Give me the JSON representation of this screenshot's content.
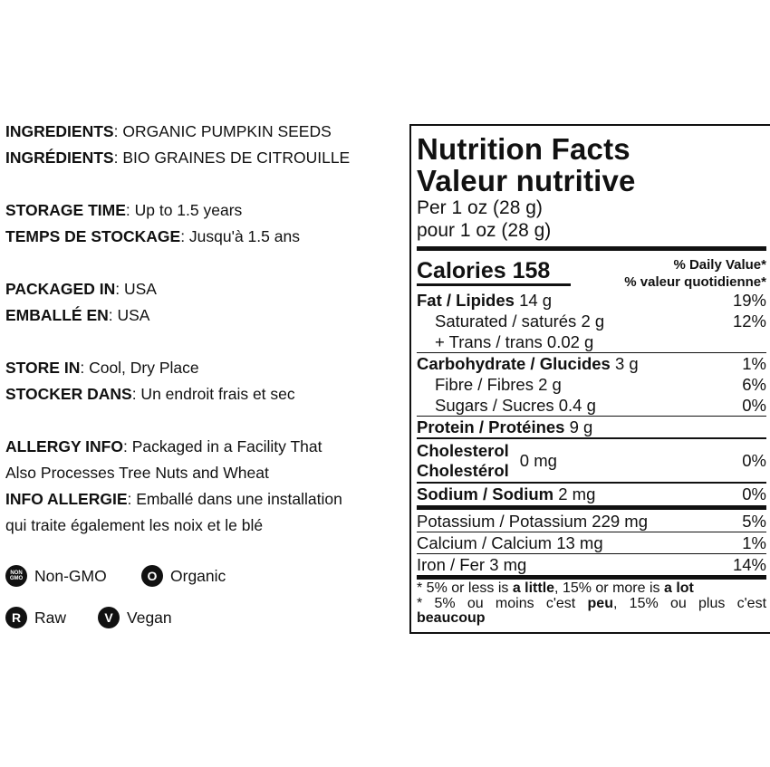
{
  "info": [
    {
      "label": "INGREDIENTS",
      "value": ": ORGANIC PUMPKIN SEEDS"
    },
    {
      "label": "INGRÉDIENTS",
      "value": ": BIO GRAINES DE CITROUILLE"
    },
    null,
    {
      "label": "STORAGE TIME",
      "value": ": Up to 1.5 years"
    },
    {
      "label": "TEMPS DE STOCKAGE",
      "value": ": Jusqu'à 1.5 ans"
    },
    null,
    {
      "label": "PACKAGED IN",
      "value": ": USA"
    },
    {
      "label": "EMBALLÉ EN",
      "value": ": USA"
    },
    null,
    {
      "label": "STORE IN",
      "value": ": Cool, Dry Place"
    },
    {
      "label": "STOCKER DANS",
      "value": ": Un endroit frais et sec"
    },
    null,
    {
      "label": "ALLERGY INFO",
      "value": ": Packaged in a Facility That"
    },
    {
      "label": "",
      "value": "Also Processes Tree Nuts and Wheat"
    },
    {
      "label": "INFO ALLERGIE",
      "value": ": Emballé dans une installation"
    },
    {
      "label": "",
      "value": "qui traite également les noix et le blé"
    }
  ],
  "badges": [
    {
      "icon": "non-gmo-icon",
      "glyph": "NON GMO",
      "label": "Non-GMO"
    },
    {
      "icon": "organic-icon",
      "glyph": "O",
      "label": "Organic"
    },
    {
      "icon": "raw-icon",
      "glyph": "R",
      "label": "Raw"
    },
    {
      "icon": "vegan-icon",
      "glyph": "V",
      "label": "Vegan"
    }
  ],
  "nutrition": {
    "title_en": "Nutrition Facts",
    "title_fr": "Valeur nutritive",
    "per_en": "Per 1 oz (28 g)",
    "per_fr": "pour 1 oz (28 g)",
    "calories": "Calories 158",
    "dv_en": "% Daily Value*",
    "dv_fr": "% valeur quotidienne*",
    "fat": {
      "label": "Fat / Lipides",
      "amount": " 14 g",
      "dv": "19%"
    },
    "saturated": {
      "label": "Saturated / saturés 2 g",
      "dv": "12%"
    },
    "trans": {
      "label": "+ Trans / trans 0.02 g"
    },
    "carb": {
      "label": "Carbohydrate / Glucides",
      "amount": " 3 g",
      "dv": "1%"
    },
    "fibre": {
      "label": "Fibre / Fibres 2 g",
      "dv": "6%"
    },
    "sugars": {
      "label": "Sugars / Sucres 0.4 g",
      "dv": "0%"
    },
    "protein": {
      "label": "Protein / Protéines",
      "amount": " 9 g"
    },
    "cholesterol": {
      "label_en": "Cholesterol",
      "label_fr": "Cholestérol",
      "amount": "0 mg",
      "dv": "0%"
    },
    "sodium": {
      "label": "Sodium / Sodium",
      "amount": " 2 mg",
      "dv": "0%"
    },
    "potassium": {
      "label": "Potassium / Potassium 229 mg",
      "dv": "5%"
    },
    "calcium": {
      "label": "Calcium / Calcium 13 mg",
      "dv": "1%"
    },
    "iron": {
      "label": "Iron / Fer 3 mg",
      "dv": "14%"
    },
    "foot_en": [
      "* 5% or less is ",
      "a little",
      ", 15% or more is ",
      "a lot"
    ],
    "foot_fr": [
      "* 5% ou moins c'est ",
      "peu",
      ", 15% ou plus c'est"
    ],
    "foot_fr2": "beaucoup"
  }
}
